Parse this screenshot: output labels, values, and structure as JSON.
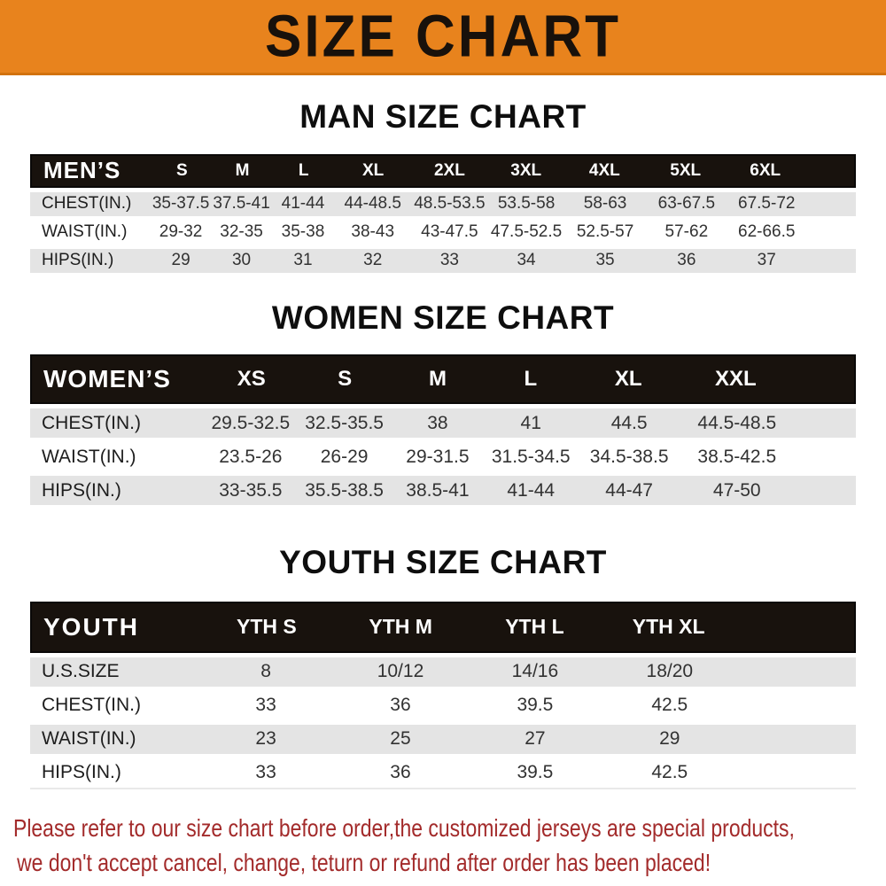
{
  "banner": {
    "title": "SIZE CHART"
  },
  "chart_data": [
    {
      "type": "table",
      "title": "MAN SIZE CHART",
      "columns": [
        "MEN’S",
        "S",
        "M",
        "L",
        "XL",
        "2XL",
        "3XL",
        "4XL",
        "5XL",
        "6XL"
      ],
      "rows": [
        [
          "CHEST(IN.)",
          "35-37.5",
          "37.5-41",
          "41-44",
          "44-48.5",
          "48.5-53.5",
          "53.5-58",
          "58-63",
          "63-67.5",
          "67.5-72"
        ],
        [
          "WAIST(IN.)",
          "29-32",
          "32-35",
          "35-38",
          "38-43",
          "43-47.5",
          "47.5-52.5",
          "52.5-57",
          "57-62",
          "62-66.5"
        ],
        [
          "HIPS(IN.)",
          "29",
          "30",
          "31",
          "32",
          "33",
          "34",
          "35",
          "36",
          "37"
        ]
      ]
    },
    {
      "type": "table",
      "title": "WOMEN SIZE CHART",
      "columns": [
        "WOMEN’S",
        "XS",
        "S",
        "M",
        "L",
        "XL",
        "XXL"
      ],
      "rows": [
        [
          "CHEST(IN.)",
          "29.5-32.5",
          "32.5-35.5",
          "38",
          "41",
          "44.5",
          "44.5-48.5"
        ],
        [
          "WAIST(IN.)",
          "23.5-26",
          "26-29",
          "29-31.5",
          "31.5-34.5",
          "34.5-38.5",
          "38.5-42.5"
        ],
        [
          "HIPS(IN.)",
          "33-35.5",
          "35.5-38.5",
          "38.5-41",
          "41-44",
          "44-47",
          "47-50"
        ]
      ]
    },
    {
      "type": "table",
      "title": "YOUTH SIZE CHART",
      "columns": [
        "YOUTH",
        "YTH S",
        "YTH M",
        "YTH L",
        "YTH XL"
      ],
      "rows": [
        [
          "U.S.SIZE",
          "8",
          "10/12",
          "14/16",
          "18/20"
        ],
        [
          "CHEST(IN.)",
          "33",
          "36",
          "39.5",
          "42.5"
        ],
        [
          "WAIST(IN.)",
          "23",
          "25",
          "27",
          "29"
        ],
        [
          "HIPS(IN.)",
          "33",
          "36",
          "39.5",
          "42.5"
        ]
      ]
    }
  ],
  "footer": {
    "lines": [
      "Please refer to our size chart before order,the customized jerseys are special products,",
      "we don't accept cancel, change, teturn or refund after order has been placed!"
    ]
  },
  "colors": {
    "banner_orange": "#E8831D",
    "header_bar_black": "#18120D",
    "row_gray": "#E4E4E4",
    "row_white": "#FFFFFF",
    "note_red": "#A32B2B"
  }
}
